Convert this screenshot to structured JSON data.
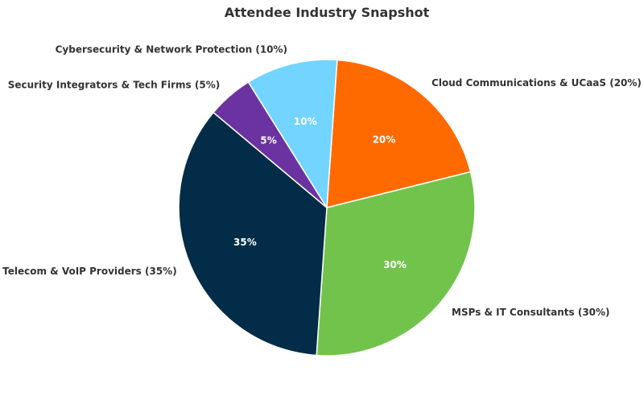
{
  "chart_data": {
    "type": "pie",
    "title": "Attendee Industry Snapshot",
    "slices": [
      {
        "name": "Cloud Communications & UCaaS",
        "value": 20,
        "label": "Cloud Communications & UCaaS (20%)",
        "pct_label": "20%",
        "color": "#ff6a00"
      },
      {
        "name": "MSPs & IT Consultants",
        "value": 30,
        "label": "MSPs & IT Consultants (30%)",
        "pct_label": "30%",
        "color": "#72c34b"
      },
      {
        "name": "Telecom & VoIP Providers",
        "value": 35,
        "label": "Telecom & VoIP Providers (35%)",
        "pct_label": "35%",
        "color": "#022c47"
      },
      {
        "name": "Security Integrators & Tech Firms",
        "value": 5,
        "label": "Security Integrators & Tech Firms (5%)",
        "pct_label": "5%",
        "color": "#6b32a1"
      },
      {
        "name": "Cybersecurity & Network Protection",
        "value": 10,
        "label": "Cybersecurity & Network Protection (10%)",
        "pct_label": "10%",
        "color": "#72d4ff"
      }
    ],
    "start_angle_deg": 86,
    "direction": "clockwise",
    "legend": "none"
  }
}
